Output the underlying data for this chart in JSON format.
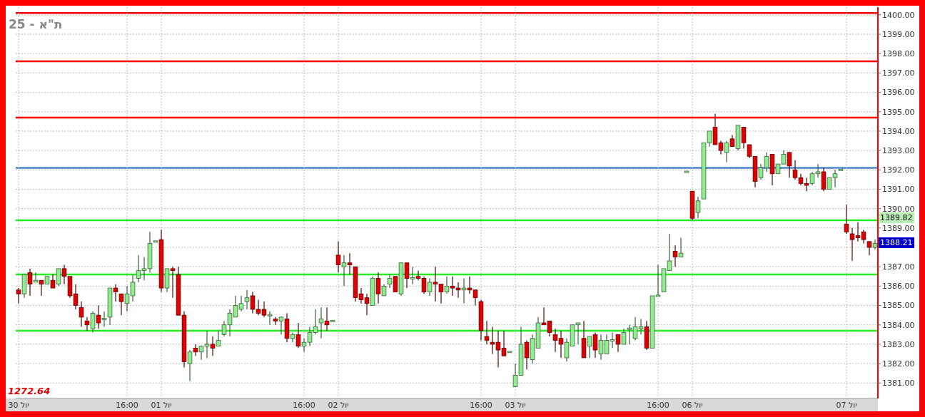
{
  "chart_data": {
    "type": "candlestick",
    "title": "ת\"א - 25",
    "categories": [
      "30 יול",
      null,
      null,
      null,
      null,
      null,
      null,
      null,
      null,
      null,
      null,
      null,
      null,
      null,
      null,
      null,
      null,
      null,
      null,
      "16:00",
      null,
      null,
      null,
      null,
      null,
      "01 יול",
      null,
      null,
      null,
      null,
      null,
      null,
      null,
      null,
      null,
      null,
      null,
      null,
      null,
      null,
      null,
      null,
      null,
      null,
      null,
      null,
      null,
      null,
      null,
      null,
      "16:00",
      null,
      null,
      null,
      null,
      null,
      "02 יול",
      null,
      null,
      null,
      null,
      null,
      null,
      null,
      null,
      null,
      null,
      null,
      null,
      null,
      null,
      null,
      null,
      null,
      null,
      null,
      null,
      null,
      null,
      null,
      null,
      "16:00",
      null,
      null,
      null,
      null,
      null,
      "03 יול",
      null,
      null,
      null,
      null,
      null,
      null,
      null,
      null,
      null,
      null,
      null,
      null,
      null,
      null,
      null,
      null,
      null,
      null,
      null,
      null,
      null,
      null,
      null,
      null,
      "16:00",
      null,
      null,
      null,
      null,
      null,
      "06 יול",
      null,
      null,
      null,
      null,
      null,
      null,
      null,
      null,
      null,
      null,
      null,
      null,
      null,
      null,
      null,
      null,
      null,
      null,
      null,
      null,
      null,
      null,
      null,
      null,
      null,
      null,
      "07 יול",
      null,
      null,
      null,
      null,
      null
    ],
    "series": [
      {
        "color": "#90ee90",
        "ohlc": [
          null,
          [
            1385.6,
            1386.6,
            1385.4,
            1386.6
          ],
          null,
          [
            1386.2,
            1386.7,
            1386.2,
            1386.3
          ],
          null,
          [
            1386.1,
            1386.5,
            1386.1,
            1386.5
          ],
          null,
          [
            1386.1,
            1386.9,
            1386.0,
            1386.9
          ],
          null,
          null,
          null,
          null,
          null,
          [
            1383.8,
            1384.7,
            1383.6,
            1384.6
          ],
          null,
          [
            1384.3,
            1384.7,
            1383.9,
            1384.3
          ],
          [
            1384.4,
            1385.9,
            1384.0,
            1385.9
          ],
          null,
          null,
          [
            1385.1,
            1386.0,
            1384.7,
            1385.6
          ],
          [
            1385.5,
            1386.6,
            1385.2,
            1386.2
          ],
          [
            1386.4,
            1387.6,
            1386.2,
            1386.8
          ],
          [
            1386.8,
            1387.5,
            1386.3,
            1386.9
          ],
          [
            1386.9,
            1388.8,
            1386.7,
            1388.2
          ],
          [
            1388.3,
            1388.3,
            1388.3,
            1388.3
          ],
          null,
          [
            1385.9,
            1386.9,
            1385.7,
            1386.9
          ],
          null,
          null,
          null,
          [
            1382.0,
            1382.7,
            1381.1,
            1382.6
          ],
          null,
          [
            1382.6,
            1382.9,
            1382.2,
            1382.9
          ],
          [
            1382.9,
            1383.7,
            1382.3,
            1383.0
          ],
          null,
          [
            1382.9,
            1383.7,
            1382.9,
            1383.2
          ],
          [
            1383.5,
            1384.2,
            1383.4,
            1384.0
          ],
          [
            1384.0,
            1384.8,
            1383.4,
            1384.6
          ],
          [
            1384.4,
            1385.5,
            1384.4,
            1385.0
          ],
          [
            1384.8,
            1385.5,
            1384.7,
            1385.1
          ],
          [
            1385.2,
            1385.8,
            1384.8,
            1385.4
          ],
          null,
          null,
          null,
          [
            1384.5,
            1384.7,
            1384.0,
            1384.5
          ],
          null,
          [
            1384.2,
            1384.4,
            1383.5,
            1384.4
          ],
          null,
          [
            1383.3,
            1383.6,
            1383.1,
            1383.5
          ],
          null,
          [
            1382.9,
            1383.3,
            1382.6,
            1383.1
          ],
          [
            1383.1,
            1383.9,
            1382.9,
            1383.6
          ],
          [
            1383.6,
            1384.8,
            1383.5,
            1383.9
          ],
          [
            1384.1,
            1384.9,
            1383.3,
            1384.3
          ],
          null,
          [
            1384.2,
            1384.2,
            1384.2,
            1384.2
          ],
          null,
          [
            1387.0,
            1387.6,
            1386.0,
            1387.2
          ],
          null,
          null,
          null,
          null,
          [
            1385.0,
            1386.5,
            1385.0,
            1386.4
          ],
          null,
          [
            1385.5,
            1386.1,
            1385.5,
            1386.0
          ],
          [
            1386.1,
            1386.6,
            1385.9,
            1386.4
          ],
          null,
          [
            1385.6,
            1387.2,
            1385.5,
            1387.2
          ],
          null,
          [
            1386.4,
            1387.0,
            1386.1,
            1386.4
          ],
          null,
          null,
          [
            1385.7,
            1386.4,
            1385.5,
            1386.2
          ],
          null,
          null,
          [
            1385.7,
            1386.5,
            1385.6,
            1386.0
          ],
          null,
          null,
          [
            1385.8,
            1386.4,
            1385.1,
            1385.9
          ],
          null,
          null,
          null,
          null,
          null,
          null,
          null,
          [
            1382.6,
            1382.6,
            1382.6,
            1382.6
          ],
          [
            1380.8,
            1382.0,
            1380.8,
            1381.4
          ],
          [
            1381.4,
            1383.9,
            1381.4,
            1383.0
          ],
          null,
          [
            1382.2,
            1383.5,
            1382.0,
            1383.3
          ],
          [
            1382.8,
            1384.4,
            1382.8,
            1384.1
          ],
          null,
          null,
          null,
          null,
          [
            1382.3,
            1383.3,
            1382.1,
            1383.1
          ],
          [
            1382.9,
            1384.0,
            1382.9,
            1384.0
          ],
          [
            1384.0,
            1384.1,
            1383.0,
            1384.1
          ],
          null,
          [
            1382.9,
            1383.4,
            1382.3,
            1383.4
          ],
          null,
          [
            1382.5,
            1383.5,
            1382.2,
            1383.2
          ],
          [
            1382.5,
            1383.5,
            1382.5,
            1383.2
          ],
          [
            1383.2,
            1383.6,
            1382.8,
            1383.2
          ],
          null,
          [
            1383.0,
            1383.8,
            1383.0,
            1383.6
          ],
          [
            1383.8,
            1384.0,
            1383.0,
            1383.8
          ],
          [
            1383.3,
            1384.4,
            1383.2,
            1383.9
          ],
          [
            1383.8,
            1384.3,
            1383.5,
            1383.9
          ],
          null,
          [
            1382.8,
            1385.5,
            1382.8,
            1385.5
          ],
          [
            1385.5,
            1387.1,
            1385.5,
            1385.5
          ],
          [
            1385.7,
            1386.9,
            1385.7,
            1386.9
          ],
          [
            1386.8,
            1388.7,
            1386.8,
            1387.3
          ],
          null,
          [
            1387.5,
            1388.5,
            1387.5,
            1387.7
          ],
          [
            1391.9,
            1391.9,
            1391.9,
            1391.9
          ],
          null,
          [
            1389.8,
            1390.6,
            1389.5,
            1390.4
          ],
          [
            1390.5,
            1393.4,
            1390.5,
            1393.4
          ],
          [
            1393.4,
            1394.0,
            1393.2,
            1394.0
          ],
          null,
          null,
          [
            1392.9,
            1393.5,
            1392.4,
            1393.4
          ],
          null,
          [
            1393.1,
            1394.3,
            1393.0,
            1394.3
          ],
          null,
          null,
          null,
          [
            1391.6,
            1392.3,
            1391.5,
            1392.1
          ],
          [
            1392.1,
            1392.9,
            1391.9,
            1392.7
          ],
          null,
          [
            1391.8,
            1392.3,
            1391.8,
            1392.3
          ],
          [
            1392.3,
            1393.0,
            1392.3,
            1392.8
          ],
          null,
          null,
          null,
          null,
          [
            1391.3,
            1391.9,
            1391.2,
            1391.8
          ],
          [
            1391.8,
            1392.3,
            1391.6,
            1391.9
          ],
          null,
          [
            1391.0,
            1391.6,
            1391.0,
            1391.6
          ],
          [
            1391.6,
            1392.0,
            1391.1,
            1391.8
          ],
          [
            1392.0,
            1392.0,
            1392.0,
            1392.0
          ],
          null,
          null,
          null,
          null,
          null,
          [
            1388.0,
            1388.4,
            1387.9,
            1388.21
          ]
        ]
      },
      {
        "color": "#e00000",
        "ohlc": [
          [
            1385.8,
            1385.9,
            1385.1,
            1385.6
          ],
          null,
          [
            1386.7,
            1386.9,
            1385.5,
            1386.1
          ],
          null,
          [
            1386.3,
            1386.3,
            1385.5,
            1386.1
          ],
          null,
          [
            1386.3,
            1386.6,
            1385.9,
            1385.9
          ],
          null,
          [
            1386.9,
            1387.1,
            1386.1,
            1386.5
          ],
          [
            1386.5,
            1386.5,
            1385.4,
            1385.5
          ],
          [
            1385.6,
            1386.1,
            1384.8,
            1385.0
          ],
          [
            1384.9,
            1385.2,
            1383.9,
            1384.4
          ],
          [
            1384.2,
            1384.4,
            1383.7,
            1384.0
          ],
          null,
          [
            1384.5,
            1385.0,
            1383.8,
            1384.1
          ],
          null,
          null,
          [
            1385.9,
            1386.1,
            1385.2,
            1385.7
          ],
          [
            1385.6,
            1385.6,
            1384.5,
            1385.2
          ],
          null,
          null,
          null,
          null,
          null,
          null,
          [
            1388.4,
            1388.9,
            1385.7,
            1385.9
          ],
          null,
          [
            1386.9,
            1387.0,
            1385.4,
            1386.8
          ],
          [
            1386.6,
            1387.0,
            1384.5,
            1384.5
          ],
          [
            1384.5,
            1384.7,
            1381.8,
            1382.1
          ],
          null,
          [
            1382.8,
            1383.0,
            1382.4,
            1382.6
          ],
          null,
          null,
          [
            1383.0,
            1383.4,
            1382.4,
            1382.8
          ],
          null,
          null,
          null,
          null,
          null,
          null,
          [
            1385.5,
            1385.7,
            1384.6,
            1384.8
          ],
          [
            1384.8,
            1385.3,
            1384.5,
            1384.6
          ],
          [
            1384.8,
            1385.2,
            1384.4,
            1384.5
          ],
          null,
          [
            1384.3,
            1384.4,
            1384.0,
            1384.2
          ],
          null,
          [
            1384.3,
            1384.6,
            1383.1,
            1383.3
          ],
          null,
          [
            1383.5,
            1384.1,
            1382.8,
            1382.9
          ],
          null,
          null,
          null,
          null,
          [
            1384.2,
            1384.9,
            1383.7,
            1384.0
          ],
          null,
          [
            1387.6,
            1388.3,
            1386.7,
            1387.1
          ],
          null,
          [
            1387.2,
            1387.7,
            1386.6,
            1387.1
          ],
          [
            1387.0,
            1387.0,
            1385.2,
            1385.4
          ],
          [
            1385.6,
            1385.9,
            1385.1,
            1385.3
          ],
          [
            1385.4,
            1385.6,
            1384.5,
            1385.1
          ],
          null,
          [
            1386.4,
            1386.7,
            1385.1,
            1385.6
          ],
          null,
          null,
          [
            1386.5,
            1386.5,
            1385.7,
            1385.7
          ],
          null,
          [
            1387.2,
            1387.2,
            1385.9,
            1386.4
          ],
          null,
          [
            1386.5,
            1386.8,
            1386.3,
            1386.4
          ],
          [
            1386.4,
            1386.5,
            1385.6,
            1385.7
          ],
          null,
          [
            1386.2,
            1387.0,
            1385.2,
            1386.1
          ],
          [
            1386.1,
            1386.1,
            1385.1,
            1385.7
          ],
          null,
          [
            1386.0,
            1386.5,
            1385.5,
            1385.9
          ],
          [
            1385.9,
            1386.2,
            1385.4,
            1385.8
          ],
          null,
          [
            1385.9,
            1386.5,
            1385.6,
            1385.8
          ],
          [
            1385.8,
            1385.8,
            1385.0,
            1385.4
          ],
          [
            1385.2,
            1385.3,
            1383.2,
            1383.7
          ],
          [
            1383.4,
            1384.2,
            1383.0,
            1383.2
          ],
          [
            1383.1,
            1383.9,
            1382.5,
            1383.0
          ],
          [
            1383.1,
            1383.7,
            1381.8,
            1382.7
          ],
          [
            1382.8,
            1383.7,
            1382.4,
            1382.4
          ],
          null,
          null,
          null,
          [
            1383.1,
            1383.2,
            1381.7,
            1382.3
          ],
          null,
          null,
          [
            1384.1,
            1384.9,
            1384.0,
            1384.0
          ],
          [
            1384.2,
            1384.2,
            1383.4,
            1383.6
          ],
          [
            1383.5,
            1383.8,
            1382.6,
            1383.2
          ],
          [
            1383.3,
            1383.7,
            1382.3,
            1383.0
          ],
          null,
          null,
          null,
          [
            1383.3,
            1384.2,
            1382.3,
            1382.3
          ],
          null,
          [
            1383.5,
            1383.6,
            1382.3,
            1382.7
          ],
          null,
          null,
          null,
          [
            1383.5,
            1383.5,
            1382.6,
            1383.0
          ],
          null,
          null,
          null,
          null,
          [
            1383.9,
            1384.2,
            1382.7,
            1382.8
          ],
          null,
          null,
          null,
          null,
          [
            1387.8,
            1388.1,
            1387.0,
            1387.5
          ],
          null,
          null,
          [
            1390.9,
            1390.9,
            1389.4,
            1389.5
          ],
          null,
          null,
          null,
          [
            1394.2,
            1394.9,
            1393.3,
            1393.3
          ],
          [
            1393.4,
            1393.5,
            1392.8,
            1393.0
          ],
          null,
          [
            1393.6,
            1393.8,
            1393.2,
            1393.2
          ],
          null,
          [
            1394.2,
            1394.2,
            1393.1,
            1393.4
          ],
          [
            1393.3,
            1393.3,
            1392.6,
            1392.7
          ],
          [
            1392.7,
            1392.7,
            1391.1,
            1391.4
          ],
          null,
          null,
          [
            1392.8,
            1392.8,
            1391.2,
            1391.8
          ],
          null,
          null,
          [
            1392.9,
            1392.9,
            1391.6,
            1392.2
          ],
          [
            1392.0,
            1392.5,
            1391.5,
            1391.6
          ],
          [
            1391.6,
            1391.8,
            1391.2,
            1391.3
          ],
          [
            1391.3,
            1391.6,
            1390.9,
            1391.2
          ],
          null,
          null,
          [
            1391.9,
            1392.1,
            1390.9,
            1391.0
          ],
          null,
          null,
          null,
          [
            1389.2,
            1390.2,
            1388.7,
            1388.8
          ],
          [
            1388.7,
            1389.0,
            1387.3,
            1388.4
          ],
          [
            1388.6,
            1389.3,
            1388.3,
            1388.5
          ],
          [
            1388.8,
            1388.9,
            1388.2,
            1388.4
          ],
          [
            1388.3,
            1388.3,
            1387.6,
            1388.0
          ],
          null
        ]
      }
    ],
    "ylim": [
      1380.2,
      1400.4
    ],
    "yticks": [
      {
        "value": 1381,
        "label": "1381.00"
      },
      {
        "value": 1382,
        "label": "1382.00"
      },
      {
        "value": 1383,
        "label": "1383.00"
      },
      {
        "value": 1384,
        "label": "1384.00"
      },
      {
        "value": 1385,
        "label": "1385.00"
      },
      {
        "value": 1386,
        "label": "1386.00"
      },
      {
        "value": 1387,
        "label": "1387.00"
      },
      {
        "value": 1388,
        "label": null
      },
      {
        "value": 1389,
        "label": "1389.00"
      },
      {
        "value": 1390,
        "label": "1390.00"
      },
      {
        "value": 1391,
        "label": "1391.00"
      },
      {
        "value": 1392,
        "label": "1392.00"
      },
      {
        "value": 1393,
        "label": "1393.00"
      },
      {
        "value": 1394,
        "label": "1394.00"
      },
      {
        "value": 1395,
        "label": "1395.00"
      },
      {
        "value": 1396,
        "label": "1396.00"
      },
      {
        "value": 1397,
        "label": "1397.00"
      },
      {
        "value": 1398,
        "label": "1398.00"
      },
      {
        "value": 1399,
        "label": "1399.00"
      },
      {
        "value": 1400,
        "label": "1400.00"
      }
    ],
    "ref_lines": [
      {
        "axis": "y",
        "value": 1400.1,
        "color": "#ff0000"
      },
      {
        "axis": "y",
        "value": 1397.6,
        "color": "#ff0000"
      },
      {
        "axis": "y",
        "value": 1394.7,
        "color": "#ff0000"
      },
      {
        "axis": "y",
        "value": 1392.1,
        "color": "#4a86c8"
      },
      {
        "axis": "y",
        "value": 1389.4,
        "color": "#22ee22"
      },
      {
        "axis": "y",
        "value": 1386.6,
        "color": "#22ee22"
      },
      {
        "axis": "y",
        "value": 1383.7,
        "color": "#22ee22"
      }
    ],
    "grid": true,
    "annotations": [
      "1272.64",
      "1389.82",
      "1388.21"
    ]
  }
}
